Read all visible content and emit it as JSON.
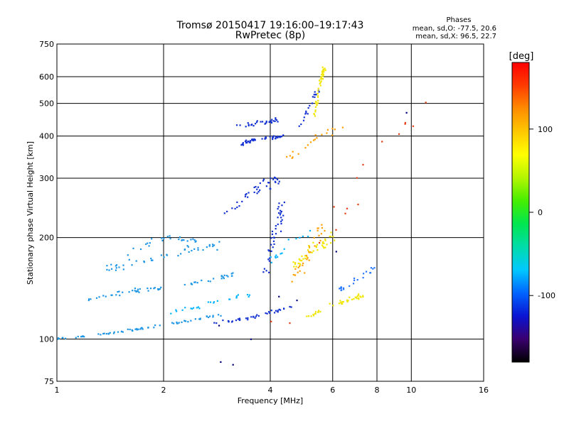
{
  "chart_data": {
    "type": "scatter",
    "title": "Tromsø 20150417 19:16:00–19:17:43",
    "subtitle": "RwPretec (8p)",
    "phase_header": "Phases",
    "phase_stats": [
      "mean, sd,O: -77.5, 20.6",
      "mean, sd,X:  96.5, 22.7"
    ],
    "xlabel": "Frequency [MHz]",
    "ylabel": "Stationary phase Virtual Height [km]",
    "x_scale": "log",
    "y_scale": "log",
    "xlim": [
      1,
      16
    ],
    "ylim": [
      75,
      750
    ],
    "x_ticks": [
      1,
      2,
      4,
      6,
      8,
      10,
      16
    ],
    "y_ticks": [
      75,
      100,
      200,
      300,
      400,
      500,
      600,
      750
    ],
    "x_grid": [
      2,
      4,
      6,
      8,
      10
    ],
    "y_grid": [
      100,
      200,
      300,
      400,
      500,
      600
    ],
    "grid": true,
    "colorbar": {
      "label": "[deg]",
      "range": [
        -180,
        180
      ],
      "ticks": [
        100,
        0,
        -100
      ],
      "colors": [
        "#000000",
        "#3a0070",
        "#0a14d2",
        "#0064ff",
        "#00c8ff",
        "#00dcaa",
        "#00e650",
        "#46ee00",
        "#b4f500",
        "#ffff00",
        "#ffc800",
        "#ff8c00",
        "#ff3c00",
        "#ff0000"
      ]
    },
    "series": [
      {
        "color": "#1e96e6",
        "traces": [
          {
            "x": [
              1.0,
              1.3,
              1.6,
              2.0,
              2.5,
              2.9
            ],
            "y": [
              100,
              103,
              106,
              110,
              115,
              118
            ],
            "n": 70,
            "jx": 0.012,
            "jy": 0.012
          },
          {
            "x": [
              1.4,
              1.8,
              2.3,
              2.9
            ],
            "y": [
              163,
              170,
              183,
              190
            ],
            "n": 45,
            "jx": 0.04,
            "jy": 0.035
          },
          {
            "x": [
              1.2,
              1.4,
              1.7,
              2.0
            ],
            "y": [
              130,
              135,
              140,
              142
            ],
            "n": 35,
            "jx": 0.02,
            "jy": 0.02
          },
          {
            "x": [
              1.6,
              2.0,
              2.5
            ],
            "y": [
              180,
              200,
              195
            ],
            "n": 25,
            "jx": 0.03,
            "jy": 0.03
          },
          {
            "x": [
              2.3,
              2.8,
              3.2
            ],
            "y": [
              145,
              150,
              157
            ],
            "n": 25,
            "jx": 0.03,
            "jy": 0.02
          }
        ]
      },
      {
        "color": "#1432d2",
        "traces": [
          {
            "x": [
              2.8,
              3.4,
              4.0,
              4.6
            ],
            "y": [
              112,
              115,
              120,
              125
            ],
            "n": 40,
            "jx": 0.015,
            "jy": 0.015
          },
          {
            "x": [
              3.3,
              3.6,
              4.0,
              4.4
            ],
            "y": [
              380,
              390,
              395,
              400
            ],
            "n": 45,
            "jx": 0.02,
            "jy": 0.02
          },
          {
            "x": [
              3.2,
              3.8,
              4.2
            ],
            "y": [
              430,
              440,
              445
            ],
            "n": 30,
            "jx": 0.03,
            "jy": 0.02
          },
          {
            "x": [
              3.0,
              3.6,
              4.2
            ],
            "y": [
              240,
              275,
              300
            ],
            "n": 40,
            "jx": 0.05,
            "jy": 0.06
          },
          {
            "x": [
              3.8,
              4.1,
              4.3
            ],
            "y": [
              150,
              200,
              250
            ],
            "n": 40,
            "jx": 0.04,
            "jy": 0.06
          },
          {
            "x": [
              4.8,
              5.0,
              5.3,
              5.6
            ],
            "y": [
              420,
              460,
              520,
              560
            ],
            "n": 20,
            "jx": 0.02,
            "jy": 0.03
          }
        ]
      },
      {
        "color": "#00b4ff",
        "traces": [
          {
            "x": [
              2.0,
              2.5,
              3.0,
              3.5
            ],
            "y": [
              120,
              125,
              132,
              135
            ],
            "n": 25,
            "jx": 0.03,
            "jy": 0.025
          },
          {
            "x": [
              4.0,
              4.5,
              5.2
            ],
            "y": [
              170,
              190,
              210
            ],
            "n": 15,
            "jx": 0.04,
            "jy": 0.05
          }
        ]
      },
      {
        "color": "#f0e600",
        "traces": [
          {
            "x": [
              5.3,
              5.5,
              5.7
            ],
            "y": [
              450,
              560,
              640
            ],
            "n": 45,
            "jx": 0.01,
            "jy": 0.04
          },
          {
            "x": [
              5.0,
              5.8,
              6.8,
              7.5
            ],
            "y": [
              115,
              125,
              132,
              135
            ],
            "n": 40,
            "jx": 0.03,
            "jy": 0.03
          },
          {
            "x": [
              4.7,
              5.3,
              6.0
            ],
            "y": [
              165,
              185,
              200
            ],
            "n": 45,
            "jx": 0.04,
            "jy": 0.06
          }
        ]
      },
      {
        "color": "#ffa000",
        "traces": [
          {
            "x": [
              4.6,
              5.1,
              5.6
            ],
            "y": [
              150,
              175,
              215
            ],
            "n": 30,
            "jx": 0.04,
            "jy": 0.07
          },
          {
            "x": [
              4.5,
              5.5,
              6.5
            ],
            "y": [
              340,
              400,
              430
            ],
            "n": 20,
            "jx": 0.03,
            "jy": 0.04
          }
        ]
      },
      {
        "color": "#e63c14",
        "traces": [
          {
            "x": [
              4.0,
              6.0,
              8.0,
              11.0
            ],
            "y": [
              100,
              200,
              420,
              480
            ],
            "n": 16,
            "jx": 0.12,
            "jy": 0.25
          }
        ]
      },
      {
        "color": "#2878ff",
        "traces": [
          {
            "x": [
              6.2,
              7.0,
              8.0
            ],
            "y": [
              140,
              150,
              165
            ],
            "n": 22,
            "jx": 0.03,
            "jy": 0.03
          }
        ]
      },
      {
        "color": "#000078",
        "traces": [
          {
            "x": [
              2.7,
              3.3,
              5.0,
              12.5
            ],
            "y": [
              90,
              100,
              140,
              570
            ],
            "n": 8,
            "jx": 0.2,
            "jy": 0.2
          }
        ]
      }
    ]
  }
}
